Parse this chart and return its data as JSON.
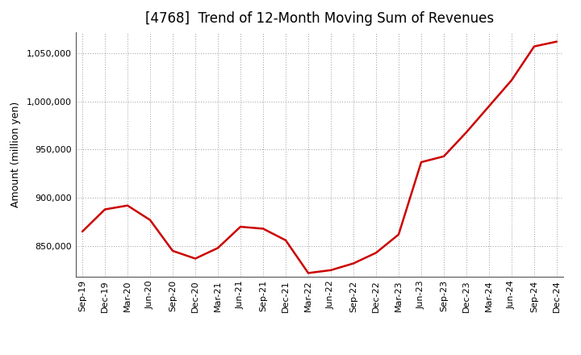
{
  "title": "[4768]  Trend of 12-Month Moving Sum of Revenues",
  "ylabel": "Amount (million yen)",
  "line_color": "#cc0000",
  "background_color": "#ffffff",
  "grid_color": "#999999",
  "title_fontsize": 12,
  "label_fontsize": 9,
  "tick_fontsize": 8,
  "x_labels": [
    "Sep-19",
    "Dec-19",
    "Mar-20",
    "Jun-20",
    "Sep-20",
    "Dec-20",
    "Mar-21",
    "Jun-21",
    "Sep-21",
    "Dec-21",
    "Mar-22",
    "Jun-22",
    "Sep-22",
    "Dec-22",
    "Mar-23",
    "Jun-23",
    "Sep-23",
    "Dec-23",
    "Mar-24",
    "Jun-24",
    "Sep-24",
    "Dec-24"
  ],
  "y_values": [
    865000,
    888000,
    892000,
    877000,
    845000,
    837000,
    848000,
    870000,
    868000,
    856000,
    822000,
    825000,
    832000,
    843000,
    862000,
    937000,
    943000,
    968000,
    995000,
    1022000,
    1057000,
    1062000
  ],
  "ylim": [
    818000,
    1072000
  ],
  "yticks": [
    850000,
    900000,
    950000,
    1000000,
    1050000
  ],
  "figsize": [
    7.2,
    4.4
  ],
  "dpi": 100
}
